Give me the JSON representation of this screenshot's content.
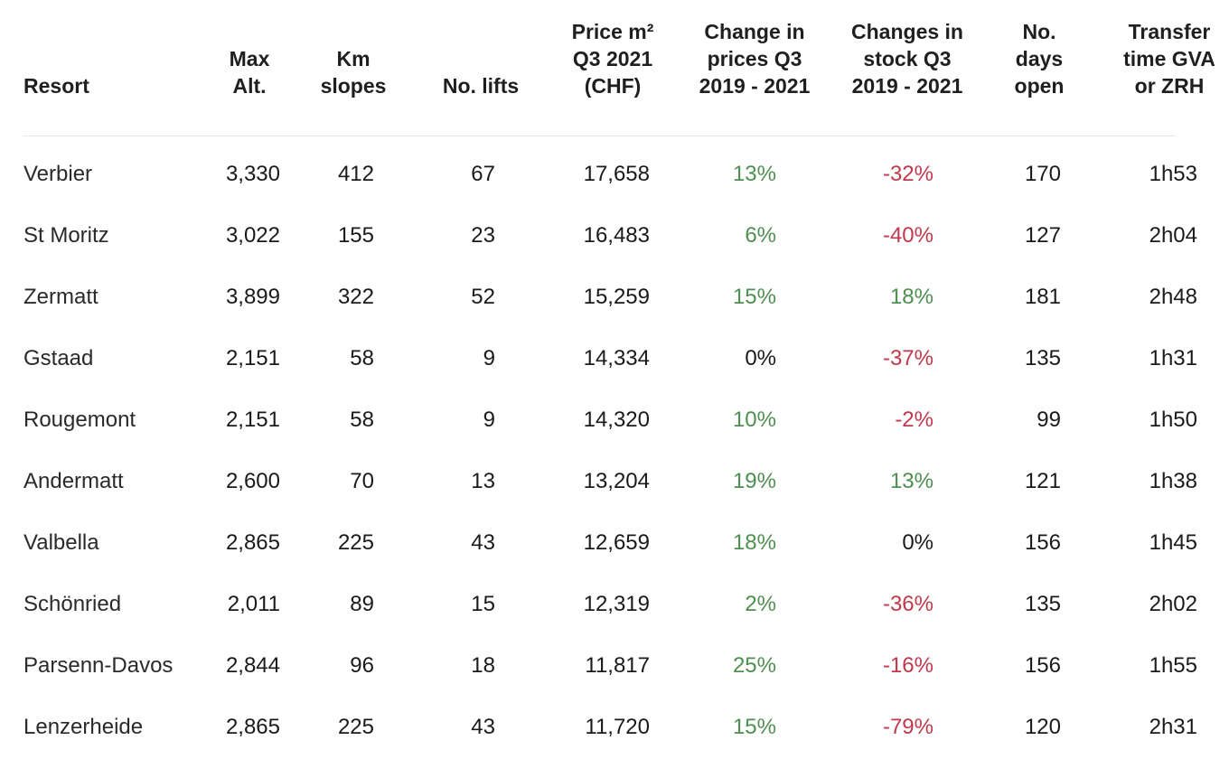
{
  "colors": {
    "positive": "#4e8f50",
    "negative": "#c0394b",
    "neutral": "#1a1a1a"
  },
  "headers": [
    "Resort",
    "Max\nAlt.",
    "Km\nslopes",
    "No. lifts",
    "Price m²\nQ3 2021\n(CHF)",
    "Change in\nprices Q3\n2019 - 2021",
    "Changes in\nstock Q3\n2019 - 2021",
    "No.\ndays\nopen",
    "Transfer\ntime GVA\nor ZRH"
  ],
  "rows": [
    {
      "resort": "Verbier",
      "max_alt": "3,330",
      "km_slopes": "412",
      "lifts": "67",
      "price": "17,658",
      "price_change": "13%",
      "stock_change": "-32%",
      "days_open": "170",
      "transfer": "1h53"
    },
    {
      "resort": "St Moritz",
      "max_alt": "3,022",
      "km_slopes": "155",
      "lifts": "23",
      "price": "16,483",
      "price_change": "6%",
      "stock_change": "-40%",
      "days_open": "127",
      "transfer": "2h04"
    },
    {
      "resort": "Zermatt",
      "max_alt": "3,899",
      "km_slopes": "322",
      "lifts": "52",
      "price": "15,259",
      "price_change": "15%",
      "stock_change": "18%",
      "days_open": "181",
      "transfer": "2h48"
    },
    {
      "resort": "Gstaad",
      "max_alt": "2,151",
      "km_slopes": "58",
      "lifts": "9",
      "price": "14,334",
      "price_change": "0%",
      "stock_change": "-37%",
      "days_open": "135",
      "transfer": "1h31"
    },
    {
      "resort": "Rougemont",
      "max_alt": "2,151",
      "km_slopes": "58",
      "lifts": "9",
      "price": "14,320",
      "price_change": "10%",
      "stock_change": "-2%",
      "days_open": "99",
      "transfer": "1h50"
    },
    {
      "resort": "Andermatt",
      "max_alt": "2,600",
      "km_slopes": "70",
      "lifts": "13",
      "price": "13,204",
      "price_change": "19%",
      "stock_change": "13%",
      "days_open": "121",
      "transfer": "1h38"
    },
    {
      "resort": "Valbella",
      "max_alt": "2,865",
      "km_slopes": "225",
      "lifts": "43",
      "price": "12,659",
      "price_change": "18%",
      "stock_change": "0%",
      "days_open": "156",
      "transfer": "1h45"
    },
    {
      "resort": "Schönried",
      "max_alt": "2,011",
      "km_slopes": "89",
      "lifts": "15",
      "price": "12,319",
      "price_change": "2%",
      "stock_change": "-36%",
      "days_open": "135",
      "transfer": "2h02"
    },
    {
      "resort": "Parsenn-Davos",
      "max_alt": "2,844",
      "km_slopes": "96",
      "lifts": "18",
      "price": "11,817",
      "price_change": "25%",
      "stock_change": "-16%",
      "days_open": "156",
      "transfer": "1h55"
    },
    {
      "resort": "Lenzerheide",
      "max_alt": "2,865",
      "km_slopes": "225",
      "lifts": "43",
      "price": "11,720",
      "price_change": "15%",
      "stock_change": "-79%",
      "days_open": "120",
      "transfer": "2h31"
    }
  ]
}
